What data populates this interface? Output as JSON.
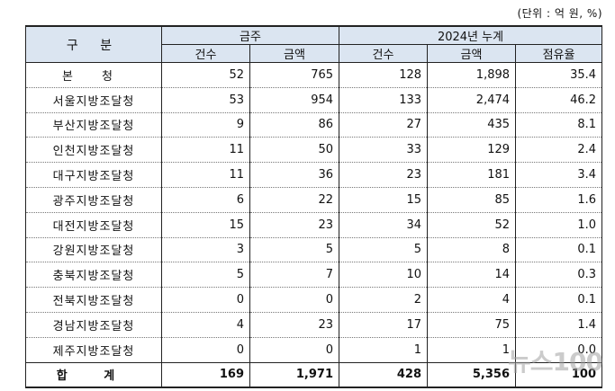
{
  "unit_label": "(단위 : 억 원, %)",
  "header": {
    "category": "구 분",
    "week": "금주",
    "cumulative": "2024년 누계",
    "count": "건수",
    "amount": "금액",
    "share": "점유율"
  },
  "rows": [
    {
      "name": "본 청",
      "w_count": "52",
      "w_amount": "765",
      "c_count": "128",
      "c_amount": "1,898",
      "share": "35.4"
    },
    {
      "name": "서울지방조달청",
      "w_count": "53",
      "w_amount": "954",
      "c_count": "133",
      "c_amount": "2,474",
      "share": "46.2"
    },
    {
      "name": "부산지방조달청",
      "w_count": "9",
      "w_amount": "86",
      "c_count": "27",
      "c_amount": "435",
      "share": "8.1"
    },
    {
      "name": "인천지방조달청",
      "w_count": "11",
      "w_amount": "50",
      "c_count": "33",
      "c_amount": "129",
      "share": "2.4"
    },
    {
      "name": "대구지방조달청",
      "w_count": "11",
      "w_amount": "36",
      "c_count": "23",
      "c_amount": "181",
      "share": "3.4"
    },
    {
      "name": "광주지방조달청",
      "w_count": "6",
      "w_amount": "22",
      "c_count": "15",
      "c_amount": "85",
      "share": "1.6"
    },
    {
      "name": "대전지방조달청",
      "w_count": "15",
      "w_amount": "23",
      "c_count": "34",
      "c_amount": "52",
      "share": "1.0"
    },
    {
      "name": "강원지방조달청",
      "w_count": "3",
      "w_amount": "5",
      "c_count": "5",
      "c_amount": "8",
      "share": "0.1"
    },
    {
      "name": "충북지방조달청",
      "w_count": "5",
      "w_amount": "7",
      "c_count": "10",
      "c_amount": "14",
      "share": "0.3"
    },
    {
      "name": "전북지방조달청",
      "w_count": "0",
      "w_amount": "0",
      "c_count": "2",
      "c_amount": "4",
      "share": "0.1"
    },
    {
      "name": "경남지방조달청",
      "w_count": "4",
      "w_amount": "23",
      "c_count": "17",
      "c_amount": "75",
      "share": "1.4"
    },
    {
      "name": "제주지방조달청",
      "w_count": "0",
      "w_amount": "0",
      "c_count": "1",
      "c_amount": "1",
      "share": "0.0"
    }
  ],
  "total": {
    "name": "합 계",
    "w_count": "169",
    "w_amount": "1,971",
    "c_count": "428",
    "c_amount": "5,356",
    "share": "100"
  },
  "watermark": "뉴스100"
}
